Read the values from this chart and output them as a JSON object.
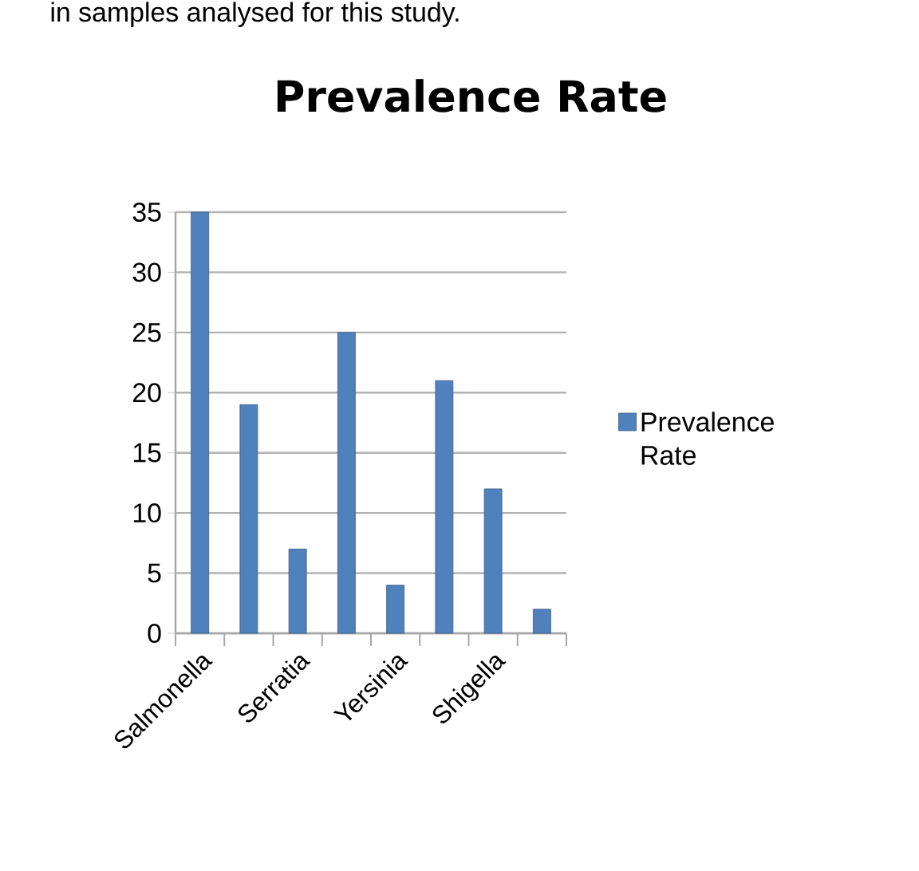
{
  "chart_data": {
    "type": "bar",
    "title": "Prevalence Rate",
    "categories": [
      "Salmonella",
      null,
      "Serratia",
      null,
      "Yersinia",
      null,
      "Shigella",
      null
    ],
    "series": [
      {
        "name": "Prevalence Rate",
        "color": "#4f81bd",
        "values": [
          35,
          19,
          7,
          25,
          4,
          21,
          12,
          2
        ]
      }
    ],
    "ylim": [
      0,
      35
    ],
    "yticks": [
      0,
      5,
      10,
      15,
      20,
      25,
      30,
      35
    ],
    "grid": "y",
    "legend": "right",
    "annotations": [
      "in samples analysed for this study."
    ]
  }
}
